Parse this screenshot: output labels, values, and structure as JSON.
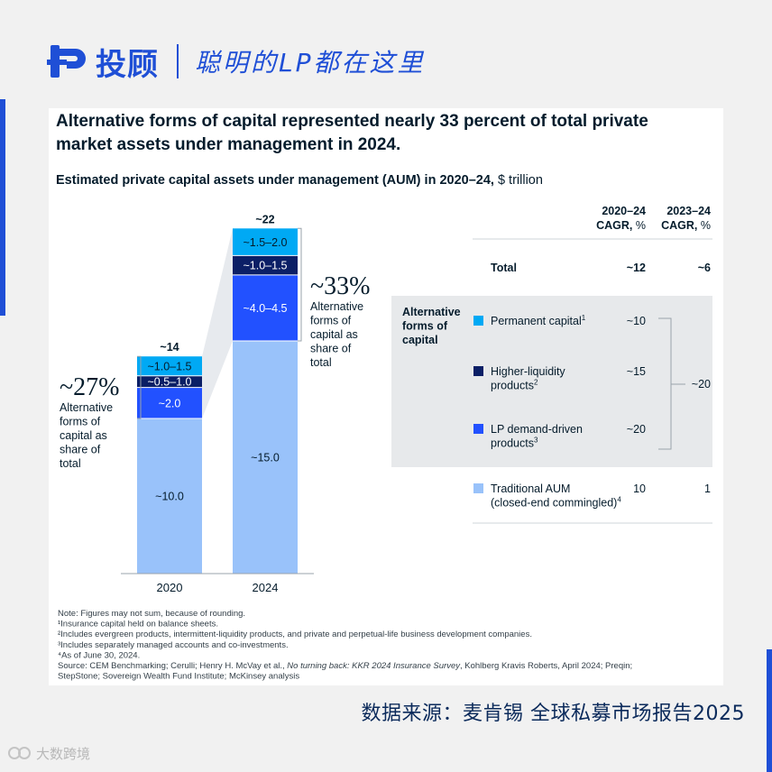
{
  "brand": {
    "name": "投顾",
    "slogan": "聪明的LP都在这里"
  },
  "headline": "Alternative forms of capital represented nearly 33 percent of total private market assets under management in 2024.",
  "subtitle_bold": "Estimated private capital assets under management (AUM) in 2020–24,",
  "subtitle_unit": " $ trillion",
  "chart_data": {
    "type": "bar",
    "stacked": true,
    "categories": [
      "2020",
      "2024"
    ],
    "totals": [
      "~14",
      "~22"
    ],
    "series": [
      {
        "name": "Traditional AUM (closed-end commingled)",
        "color": "#99c2fa",
        "values": [
          10.0,
          15.0
        ],
        "labels": [
          "~10.0",
          "~15.0"
        ]
      },
      {
        "name": "LP demand-driven products",
        "color": "#2251ff",
        "values": [
          2.0,
          4.25
        ],
        "labels": [
          "~2.0",
          "~4.0–4.5"
        ]
      },
      {
        "name": "Higher-liquidity products",
        "color": "#0b1f66",
        "values": [
          0.75,
          1.25
        ],
        "labels": [
          "~0.5–1.0",
          "~1.0–1.5"
        ]
      },
      {
        "name": "Permanent capital",
        "color": "#00a9f4",
        "values": [
          1.25,
          1.75
        ],
        "labels": [
          "~1.0–1.5",
          "~1.5–2.0"
        ]
      }
    ],
    "ylim": [
      0,
      22.5
    ],
    "share_callouts": [
      {
        "value": "~27%",
        "text": [
          "Alternative",
          "forms of",
          "capital as",
          "share of",
          "total"
        ]
      },
      {
        "value": "~33%",
        "text": [
          "Alternative",
          "forms of",
          "capital as",
          "share of",
          "total"
        ]
      }
    ],
    "table": {
      "col_headers": [
        [
          "2020–24",
          "CAGR, %"
        ],
        [
          "2023–24",
          "CAGR, %"
        ]
      ],
      "group_label": [
        "Alternative",
        "forms of",
        "capital"
      ],
      "total_row": {
        "label": "Total",
        "cagr_2020_24": "~12",
        "cagr_2023_24": "~6"
      },
      "rows": [
        {
          "swatch": "#00a9f4",
          "label": [
            "Permanent capital"
          ],
          "sup": "1",
          "cagr_2020_24": "~10"
        },
        {
          "swatch": "#0b1f66",
          "label": [
            "Higher-liquidity",
            "products"
          ],
          "sup": "2",
          "cagr_2020_24": "~15"
        },
        {
          "swatch": "#2251ff",
          "label": [
            "LP demand-driven",
            "products"
          ],
          "sup": "3",
          "cagr_2020_24": "~20"
        }
      ],
      "alt_group_cagr_2023_24": "~20",
      "traditional_row": {
        "swatch": "#99c2fa",
        "label": [
          "Traditional AUM",
          "(closed-end commingled)"
        ],
        "sup": "4",
        "cagr_2020_24": "10",
        "cagr_2023_24": "1"
      }
    }
  },
  "notes": [
    "Note: Figures may not sum, because of rounding.",
    "¹Insurance capital held on balance sheets.",
    "²Includes evergreen products, intermittent-liquidity products, and private and perpetual-life business development companies.",
    "³Includes separately managed accounts and co-investments.",
    "⁴As of June 30, 2024."
  ],
  "source_pre": "Source: CEM Benchmarking; Cerulli; Henry H. McVay et al., ",
  "source_italic": "No turning back: KKR 2024 Insurance Survey",
  "source_post": ", Kohlberg Kravis Roberts, April 2024; Preqin;",
  "source_line2": "StepStone; Sovereign Wealth Fund Institute; McKinsey analysis",
  "footer_source": "数据来源：麦肯锡 全球私募市场报告2025",
  "watermark": "大数跨境"
}
